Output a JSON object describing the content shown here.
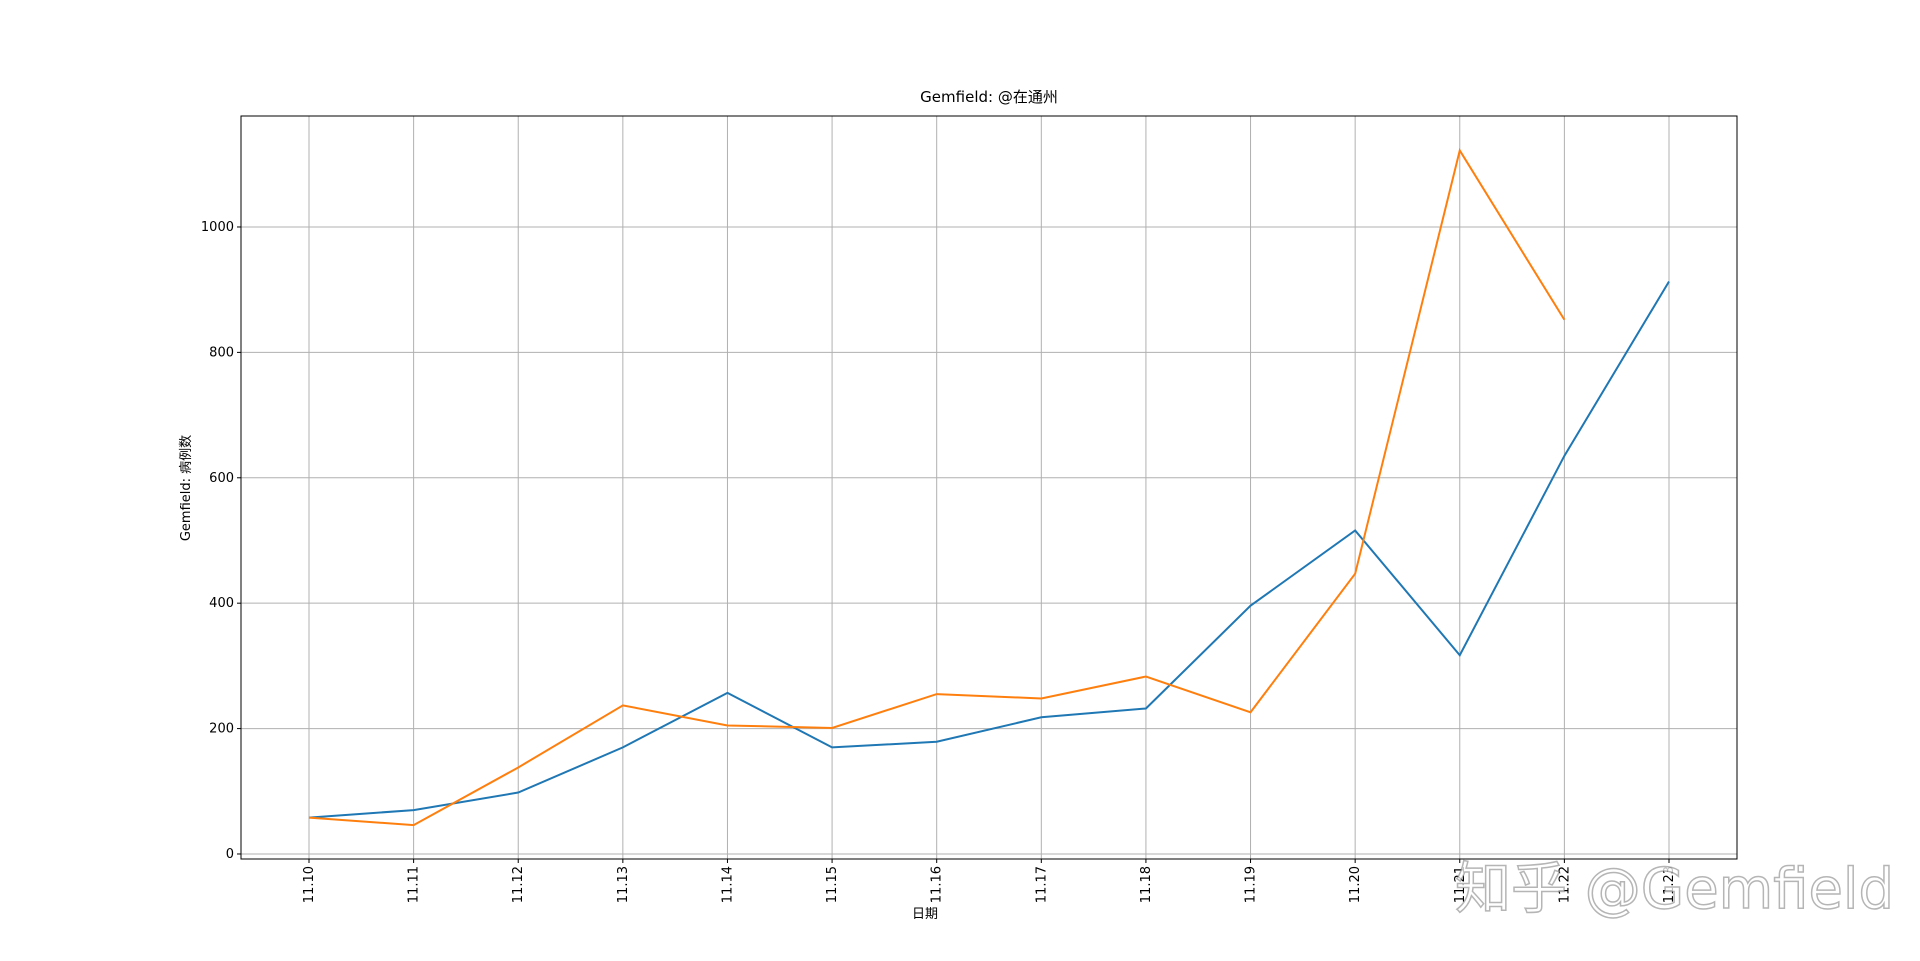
{
  "chart_data": {
    "type": "line",
    "title": "Gemfield: @在通州",
    "xlabel": "日期",
    "ylabel": "Gemfield: 病例数",
    "watermark": "知乎 @Gemfield",
    "categories": [
      "11.10",
      "11.11",
      "11.12",
      "11.13",
      "11.14",
      "11.15",
      "11.16",
      "11.17",
      "11.18",
      "11.19",
      "11.20",
      "11.21",
      "11.22",
      "11.23"
    ],
    "series": [
      {
        "color": "#1f77b4",
        "values": [
          58,
          70,
          98,
          170,
          257,
          170,
          179,
          218,
          232,
          396,
          516,
          317,
          635,
          913
        ]
      },
      {
        "color": "#ff7f0e",
        "values": [
          58,
          46,
          138,
          237,
          205,
          201,
          255,
          248,
          283,
          226,
          447,
          1122,
          852,
          null
        ]
      }
    ],
    "ylim": [
      -8,
      1177
    ],
    "yticks": [
      0,
      200,
      400,
      600,
      800,
      1000
    ],
    "grid": true
  }
}
